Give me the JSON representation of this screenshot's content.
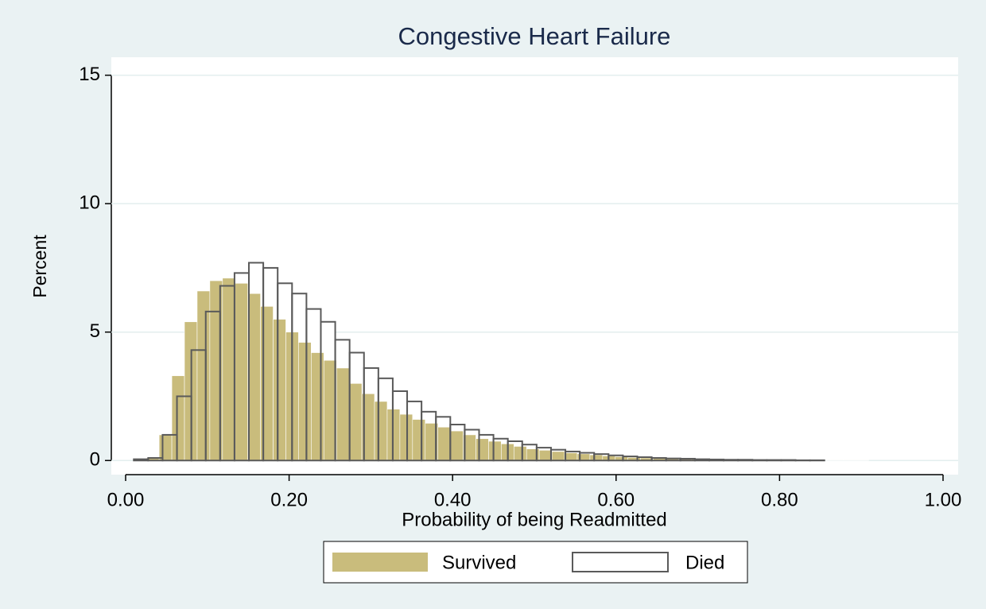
{
  "chart_data": {
    "type": "histogram",
    "title": "Congestive Heart Failure",
    "xlabel": "Probability of being Readmitted",
    "ylabel": "Percent",
    "xlim": [
      -0.0175,
      1.0185
    ],
    "ylim": [
      -0.55,
      15.7
    ],
    "xticks": [
      {
        "value": 0,
        "label": "0.00"
      },
      {
        "value": 0.2,
        "label": "0.20"
      },
      {
        "value": 0.4,
        "label": "0.40"
      },
      {
        "value": 0.6,
        "label": "0.60"
      },
      {
        "value": 0.8,
        "label": "0.80"
      },
      {
        "value": 1,
        "label": "1.00"
      }
    ],
    "yticks": [
      0,
      5,
      10,
      15
    ],
    "grid": true,
    "legend": "bottom",
    "series": [
      {
        "name": "Survived",
        "color": "#c9bc7c",
        "fill": true,
        "bins": [
          0.01,
          0.0255,
          0.041,
          0.0565,
          0.072,
          0.0875,
          0.103,
          0.1185,
          0.134,
          0.1495,
          0.165,
          0.1805,
          0.196,
          0.2115,
          0.227,
          0.2425,
          0.258,
          0.2735,
          0.289,
          0.3045,
          0.32,
          0.3355,
          0.351,
          0.3665,
          0.382,
          0.3975,
          0.413,
          0.4285,
          0.444,
          0.4595,
          0.475,
          0.4905,
          0.506,
          0.5215,
          0.537,
          0.5525,
          0.568,
          0.5835,
          0.599,
          0.6145,
          0.63,
          0.6455,
          0.661,
          0.6765,
          0.692,
          0.7075,
          0.723,
          0.7385,
          0.754,
          0.7695,
          0.785,
          0.8005,
          0.816,
          0.8315,
          0.847,
          0.8625,
          0.878,
          0.8935,
          0.909
        ],
        "values": [
          0.05,
          0.1,
          1.0,
          3.3,
          5.4,
          6.6,
          7.0,
          7.1,
          6.9,
          6.5,
          6.0,
          5.5,
          5.0,
          4.6,
          4.2,
          3.9,
          3.6,
          3.0,
          2.6,
          2.3,
          2.0,
          1.8,
          1.6,
          1.45,
          1.3,
          1.15,
          1.0,
          0.85,
          0.75,
          0.65,
          0.55,
          0.45,
          0.4,
          0.35,
          0.3,
          0.26,
          0.22,
          0.18,
          0.15,
          0.12,
          0.1,
          0.08,
          0.07,
          0.06,
          0.05,
          0.04,
          0.04,
          0.03,
          0.03,
          0.02,
          0.02,
          0.02,
          0.02,
          0.01,
          0.01,
          0.01,
          0.01,
          0.01
        ]
      },
      {
        "name": "Died",
        "color": "#5a5a5a",
        "fill": false,
        "bins": [
          0.01,
          0.0276,
          0.0452,
          0.0628,
          0.0804,
          0.098,
          0.1156,
          0.1332,
          0.1508,
          0.1684,
          0.186,
          0.2036,
          0.2212,
          0.2388,
          0.2564,
          0.274,
          0.2916,
          0.3092,
          0.3268,
          0.3444,
          0.362,
          0.3796,
          0.3972,
          0.4148,
          0.4324,
          0.45,
          0.4676,
          0.4852,
          0.5028,
          0.5204,
          0.538,
          0.5556,
          0.5732,
          0.5908,
          0.6084,
          0.626,
          0.6436,
          0.6612,
          0.6788,
          0.6964,
          0.714,
          0.7316,
          0.7492,
          0.7668,
          0.7844,
          0.802,
          0.8196,
          0.8372,
          0.8548
        ],
        "values": [
          0.05,
          0.1,
          1.0,
          2.5,
          4.3,
          5.8,
          6.8,
          7.3,
          7.7,
          7.5,
          6.9,
          6.5,
          5.9,
          5.4,
          4.7,
          4.2,
          3.6,
          3.2,
          2.7,
          2.3,
          1.9,
          1.7,
          1.4,
          1.2,
          1.0,
          0.85,
          0.75,
          0.62,
          0.5,
          0.42,
          0.35,
          0.3,
          0.25,
          0.2,
          0.16,
          0.13,
          0.1,
          0.08,
          0.07,
          0.05,
          0.04,
          0.03,
          0.03,
          0.02,
          0.02,
          0.02,
          0.01,
          0.01
        ]
      }
    ]
  }
}
